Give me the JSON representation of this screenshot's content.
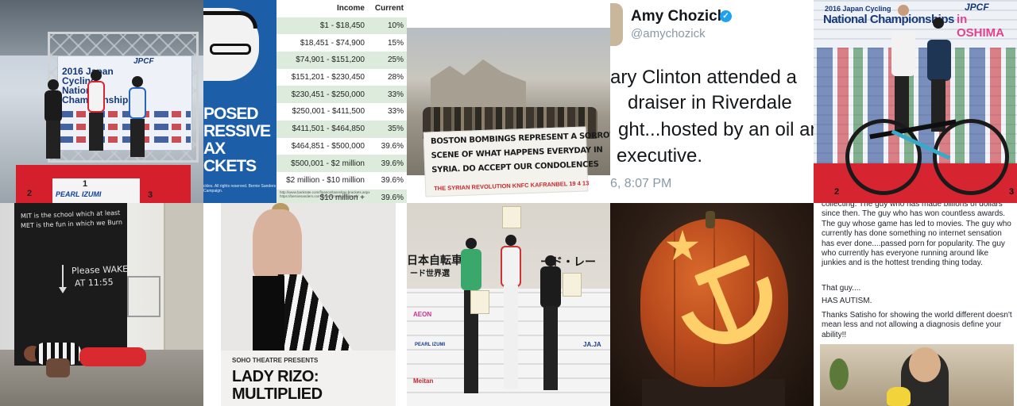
{
  "tiles": {
    "podium1": {
      "banner_title": "2016 Japan Cycling National Championships",
      "banner_brand": "JPCF",
      "podium_numbers": [
        "2",
        "1",
        "3"
      ],
      "podium_brand": "PEARL IZUMI"
    },
    "tax": {
      "left_lines": [
        "POSED",
        "RESSIVE",
        "AX",
        "CKETS"
      ],
      "credit": "ckles. All rights reserved. Bernie Sanders Campaign.",
      "headers": {
        "income": "Income",
        "current": "Current"
      },
      "rows": [
        {
          "income": "$1 - $18,450",
          "current": "10%"
        },
        {
          "income": "$18,451 - $74,900",
          "current": "15%"
        },
        {
          "income": "$74,901 - $151,200",
          "current": "25%"
        },
        {
          "income": "$151,201 - $230,450",
          "current": "28%"
        },
        {
          "income": "$230,451 - $250,000",
          "current": "33%"
        },
        {
          "income": "$250,001 - $411,500",
          "current": "33%"
        },
        {
          "income": "$411,501 - $464,850",
          "current": "35%"
        },
        {
          "income": "$464,851 - $500,000",
          "current": "39.6%"
        },
        {
          "income": "$500,001 - $2 million",
          "current": "39.6%"
        },
        {
          "income": "$2 million - $10 million",
          "current": "39.6%"
        },
        {
          "income": "$10 million +",
          "current": "39.6%"
        }
      ],
      "sources": "http://www.bankrate.com/finance/taxes/tax-brackets.aspx https://berniesanders.com/issues/medicare-for-all/"
    },
    "syria": {
      "sign_lines": [
        "BOSTON BOMBINGS REPRESENT A SORROWFUL",
        "SCENE OF WHAT HAPPENS EVERYDAY IN",
        "SYRIA.    DO ACCEPT OUR CONDOLENCES"
      ],
      "sign_red": "THE SYRIAN REVOLUTION KNFC KAFRANBEL 19 4 13"
    },
    "tweet": {
      "name": "Amy Chozick",
      "verified_mark": "✓",
      "handle": "@amychozick",
      "lines": [
        "ary Clinton attended a",
        "draiser in Riverdale",
        "ght...hosted by an oil an",
        "executive."
      ],
      "time": "6, 8:07 PM"
    },
    "champs": {
      "header1": "2016 Japan Cycling",
      "header2": "National Championships",
      "jpcf": "JPCF",
      "oshima": "in OSHIMA",
      "podium_numbers": [
        "2",
        "3"
      ]
    },
    "chalk": {
      "line1": "MIT is the school which at least",
      "line2": "MET is the fun in which we Burn",
      "line3": "Please WAKE",
      "line4": "AT 11:55"
    },
    "rizo": {
      "presents": "SOHO THEATRE PRESENTS",
      "title1": "LADY RIZO:",
      "title2": "MULTIPLIED"
    },
    "podium2": {
      "kanji": "日本自転車",
      "kanji_right": "ード・レー",
      "kanji2": "ード世界選",
      "logo_words": [
        "AEON",
        "Meitan",
        "JA.JA",
        "PEARL IZUMI"
      ]
    },
    "post": {
      "paragraph1": "collecting. The guy who has made billions of dollars since then. The guy who has won countless awards. The guy whose game has led to movies. The guy who currently has done something no internet sensation has ever done....passed porn for popularity. The guy who currently has everyone running around like junkies and is the hottest trending thing today.",
      "line2": "That guy....",
      "line3": "HAS AUTISM.",
      "paragraph4": "Thanks Satisho for showing the world different doesn't mean less and not allowing a diagnosis define your ability!!"
    }
  }
}
